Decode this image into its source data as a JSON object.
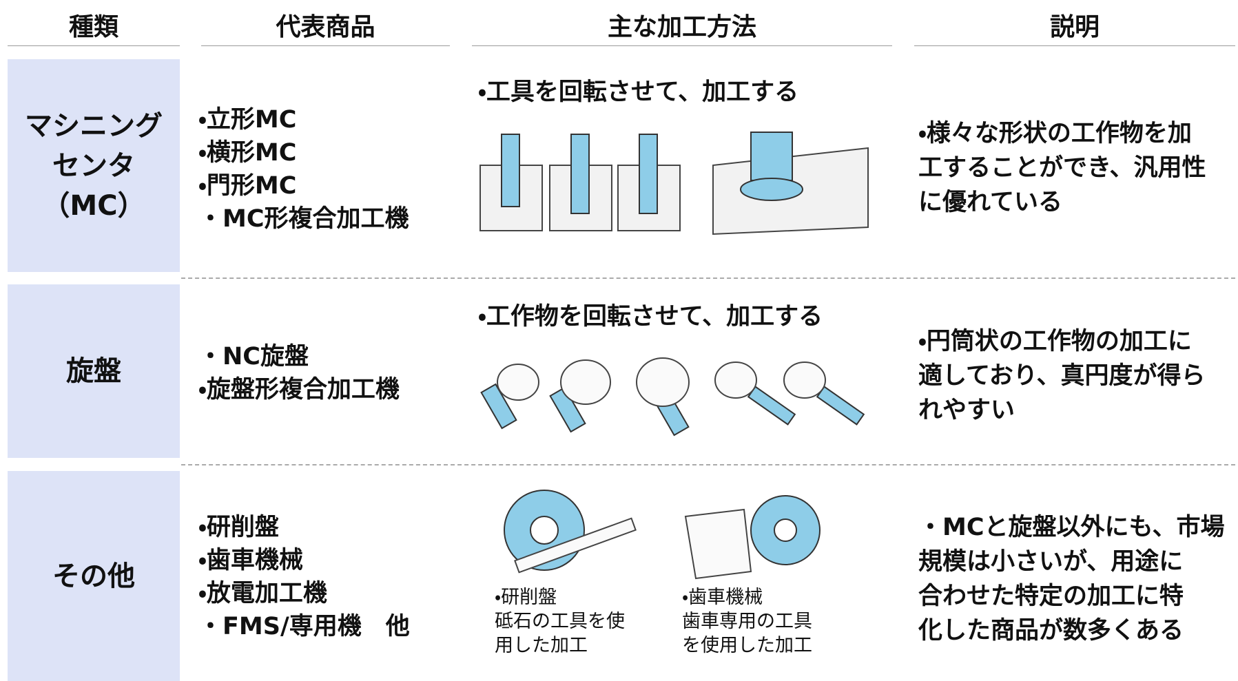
{
  "header": {
    "columns": [
      "種類",
      "代表商品",
      "主な加工方法",
      "説明"
    ]
  },
  "rows": [
    {
      "type": [
        "マシニング",
        "センタ",
        "（MC）"
      ],
      "products": [
        "・立形MC",
        "・横形MC",
        "・門形MC",
        "・MC形複合加工機"
      ],
      "method": "・工具を回転させて、加工する",
      "description": [
        "・様々な形状の工作物を加",
        "工することができ、汎用性",
        "に優れている"
      ]
    },
    {
      "type": [
        "旋盤"
      ],
      "products": [
        "・NC旋盤",
        "・旋盤形複合加工機"
      ],
      "method": "・工作物を回転させて、加工する",
      "description": [
        "・円筒状の工作物の加工に",
        "適しており、真円度が得ら",
        "れやすい"
      ]
    },
    {
      "type": [
        "その他"
      ],
      "products": [
        "・研削盤",
        "・歯車機械",
        "・放電加工機",
        "・FMS/専用機　他"
      ],
      "captions": [
        {
          "lines": [
            "・研削盤",
            "砥石の工具を使",
            "用した加工"
          ]
        },
        {
          "lines": [
            "・歯車機械",
            "歯車専用の工具",
            "を使用した加工"
          ]
        }
      ],
      "description": [
        "・MCと旋盤以外にも、市場",
        "規模は小さいが、用途に",
        "合わせた特定の加工に特",
        "化した商品が数多くある"
      ]
    }
  ]
}
